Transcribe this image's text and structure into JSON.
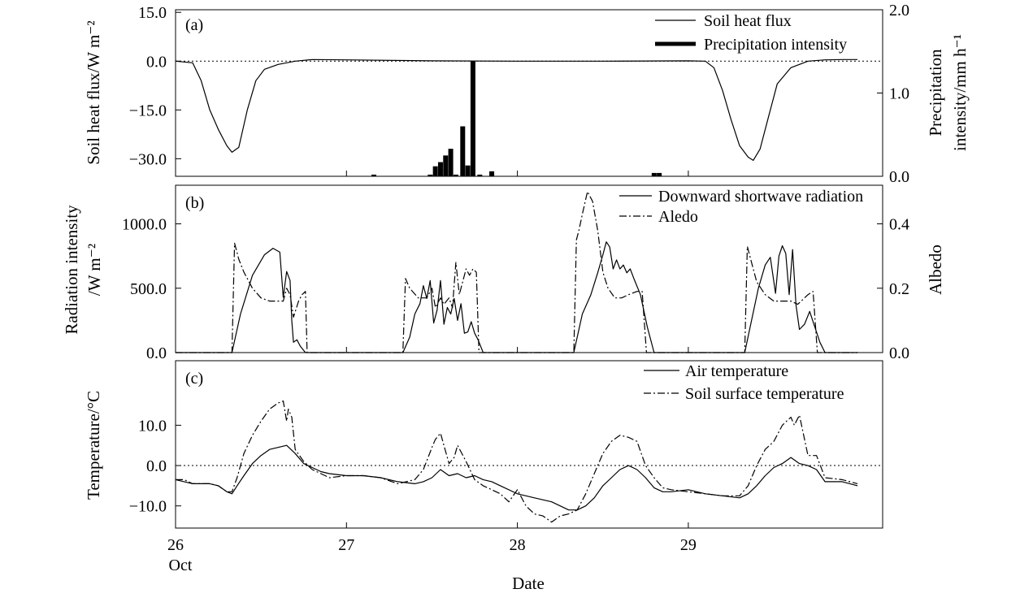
{
  "colors": {
    "line": "#000000",
    "background": "#ffffff"
  },
  "xlabel": "Date",
  "x_extra_label": "Oct",
  "xticks": [
    "26",
    "27",
    "28",
    "29"
  ],
  "chart_data": [
    {
      "type": "line+bar",
      "panel": "(a)",
      "ylabel": "Soil heat flux/W m⁻²",
      "y2label_line1": "Precipitation",
      "y2label_line2": "intensity/mm h⁻¹",
      "ylim": [
        -35.4,
        15.8
      ],
      "y2lim": [
        0,
        2.0
      ],
      "yticks": [
        15.0,
        0.0,
        -15.0,
        -30.0
      ],
      "yticklabels": [
        "15.0",
        "0.0",
        "−15.0",
        "−30.0"
      ],
      "y2ticks": [
        2.0,
        1.0,
        0.0
      ],
      "y2ticklabels": [
        "2.0",
        "1.0",
        "0.0"
      ],
      "reference_line": 0,
      "series": [
        {
          "name": "Soil heat flux",
          "axis": "left",
          "style": "solid",
          "x": [
            26.0,
            26.1,
            26.15,
            26.2,
            26.25,
            26.3,
            26.33,
            26.37,
            26.42,
            26.47,
            26.52,
            26.6,
            26.7,
            26.8,
            27.0,
            27.5,
            28.0,
            28.5,
            29.0,
            29.1,
            29.15,
            29.2,
            29.25,
            29.3,
            29.35,
            29.38,
            29.42,
            29.47,
            29.52,
            29.6,
            29.7,
            29.8,
            29.9,
            29.99
          ],
          "y": [
            0.0,
            -0.5,
            -6.0,
            -15.0,
            -21.0,
            -26.0,
            -28.0,
            -26.5,
            -15.0,
            -6.0,
            -2.5,
            -1.0,
            0.0,
            0.5,
            0.4,
            0.1,
            0.0,
            0.0,
            0.1,
            0.0,
            -2.0,
            -9.0,
            -18.0,
            -26.0,
            -29.5,
            -30.5,
            -27.0,
            -17.0,
            -7.0,
            -2.0,
            0.0,
            0.4,
            0.5,
            0.5
          ]
        },
        {
          "name": "Precipitation intensity",
          "axis": "right",
          "style": "bar",
          "x": [
            27.16,
            27.49,
            27.52,
            27.55,
            27.58,
            27.61,
            27.64,
            27.68,
            27.71,
            27.74,
            27.78,
            27.85,
            28.8,
            28.83
          ],
          "y": [
            0.02,
            0.02,
            0.12,
            0.17,
            0.25,
            0.33,
            0.02,
            0.6,
            0.13,
            1.38,
            0.02,
            0.06,
            0.04,
            0.04
          ]
        }
      ]
    },
    {
      "type": "line",
      "panel": "(b)",
      "ylabel_line1": "Radiation intensity",
      "ylabel_line2": "/W m⁻²",
      "y2label": "Albedo",
      "ylim": [
        0,
        1300
      ],
      "y2lim": [
        0,
        0.52
      ],
      "yticks": [
        1000.0,
        500.0,
        0.0
      ],
      "yticklabels": [
        "1000.0",
        "500.0",
        "0.0"
      ],
      "y2ticks": [
        0.4,
        0.2,
        0.0
      ],
      "y2ticklabels": [
        "0.4",
        "0.2",
        "0.0"
      ],
      "series": [
        {
          "name": "Downward shortwave radiation",
          "axis": "left",
          "style": "solid",
          "x": [
            26.0,
            26.33,
            26.38,
            26.45,
            26.52,
            26.57,
            26.61,
            26.63,
            26.65,
            26.67,
            26.68,
            26.69,
            26.71,
            26.73,
            26.76,
            26.8,
            26.95,
            27.33,
            27.37,
            27.4,
            27.43,
            27.45,
            27.47,
            27.49,
            27.51,
            27.53,
            27.55,
            27.57,
            27.59,
            27.61,
            27.63,
            27.65,
            27.67,
            27.69,
            27.71,
            27.73,
            27.75,
            27.77,
            27.8,
            28.33,
            28.38,
            28.43,
            28.47,
            28.5,
            28.52,
            28.54,
            28.56,
            28.58,
            28.6,
            28.62,
            28.64,
            28.66,
            28.68,
            28.72,
            28.76,
            28.8,
            28.95,
            29.33,
            29.37,
            29.41,
            29.45,
            29.48,
            29.51,
            29.53,
            29.55,
            29.57,
            29.59,
            29.61,
            29.63,
            29.65,
            29.68,
            29.71,
            29.74,
            29.77,
            29.8,
            29.99
          ],
          "y": [
            0,
            0,
            300,
            600,
            760,
            810,
            780,
            430,
            630,
            560,
            250,
            80,
            100,
            50,
            0,
            0,
            0,
            0,
            120,
            300,
            380,
            520,
            420,
            560,
            230,
            330,
            560,
            220,
            350,
            300,
            420,
            250,
            380,
            150,
            160,
            240,
            150,
            100,
            0,
            0,
            300,
            450,
            620,
            760,
            860,
            820,
            650,
            720,
            650,
            680,
            620,
            650,
            580,
            450,
            200,
            0,
            0,
            0,
            250,
            500,
            680,
            740,
            460,
            750,
            830,
            770,
            450,
            800,
            370,
            180,
            220,
            320,
            200,
            80,
            0,
            0
          ]
        },
        {
          "name": "Aledo",
          "axis": "right",
          "style": "dashdot",
          "x": [
            26.0,
            26.33,
            26.345,
            26.37,
            26.4,
            26.45,
            26.5,
            26.55,
            26.6,
            26.63,
            26.65,
            26.67,
            26.69,
            26.72,
            26.74,
            26.76,
            26.77,
            26.95,
            27.33,
            27.345,
            27.37,
            27.42,
            27.47,
            27.5,
            27.52,
            27.55,
            27.57,
            27.6,
            27.62,
            27.64,
            27.66,
            27.68,
            27.7,
            27.72,
            27.74,
            27.76,
            27.775,
            27.95,
            28.33,
            28.345,
            28.36,
            28.38,
            28.41,
            28.44,
            28.47,
            28.5,
            28.53,
            28.57,
            28.61,
            28.65,
            28.7,
            28.73,
            28.755,
            28.95,
            29.33,
            29.345,
            29.37,
            29.4,
            29.45,
            29.5,
            29.55,
            29.6,
            29.64,
            29.68,
            29.7,
            29.73,
            29.755,
            29.99
          ],
          "y": [
            0.0,
            0.0,
            0.34,
            0.29,
            0.25,
            0.2,
            0.17,
            0.16,
            0.16,
            0.16,
            0.2,
            0.18,
            0.11,
            0.16,
            0.18,
            0.19,
            0.0,
            0.0,
            0.0,
            0.23,
            0.2,
            0.17,
            0.17,
            0.2,
            0.14,
            0.17,
            0.15,
            0.17,
            0.14,
            0.28,
            0.18,
            0.22,
            0.26,
            0.24,
            0.26,
            0.25,
            0.0,
            0.0,
            0.0,
            0.35,
            0.38,
            0.43,
            0.5,
            0.47,
            0.38,
            0.25,
            0.2,
            0.17,
            0.17,
            0.18,
            0.19,
            0.19,
            0.0,
            0.0,
            0.0,
            0.33,
            0.28,
            0.22,
            0.18,
            0.16,
            0.16,
            0.16,
            0.15,
            0.17,
            0.18,
            0.19,
            0.0,
            0.0
          ]
        }
      ]
    },
    {
      "type": "line",
      "panel": "(c)",
      "ylabel": "Temperature/°C",
      "ylim": [
        -15.5,
        26.0
      ],
      "yticks": [
        10.0,
        0.0,
        -10.0
      ],
      "yticklabels": [
        "10.0",
        "0.0",
        "−10.0"
      ],
      "reference_line": 0,
      "series": [
        {
          "name": "Air temperature",
          "axis": "left",
          "style": "solid",
          "x": [
            26.0,
            26.05,
            26.1,
            26.15,
            26.2,
            26.25,
            26.3,
            26.33,
            26.36,
            26.4,
            26.45,
            26.5,
            26.55,
            26.6,
            26.65,
            26.7,
            26.75,
            26.8,
            26.85,
            26.9,
            27.0,
            27.1,
            27.2,
            27.3,
            27.4,
            27.45,
            27.5,
            27.55,
            27.6,
            27.65,
            27.7,
            27.75,
            27.8,
            27.85,
            27.9,
            28.0,
            28.1,
            28.2,
            28.25,
            28.3,
            28.35,
            28.4,
            28.45,
            28.5,
            28.55,
            28.6,
            28.65,
            28.7,
            28.75,
            28.8,
            28.85,
            28.9,
            29.0,
            29.1,
            29.2,
            29.3,
            29.35,
            29.4,
            29.45,
            29.5,
            29.55,
            29.6,
            29.65,
            29.7,
            29.75,
            29.8,
            29.9,
            29.99
          ],
          "y": [
            -3.5,
            -4.0,
            -4.5,
            -4.5,
            -4.5,
            -5.0,
            -6.5,
            -7.0,
            -5.0,
            -2.5,
            0.5,
            2.5,
            4.0,
            4.5,
            5.0,
            3.0,
            0.5,
            -0.5,
            -1.5,
            -2.0,
            -2.5,
            -2.5,
            -3.0,
            -4.0,
            -4.5,
            -4.0,
            -3.0,
            -1.0,
            -2.5,
            -2.0,
            -3.0,
            -2.5,
            -3.5,
            -4.0,
            -5.0,
            -7.0,
            -8.0,
            -9.0,
            -10.0,
            -11.0,
            -11.0,
            -10.0,
            -8.0,
            -5.0,
            -3.0,
            -1.0,
            0.0,
            -1.0,
            -3.0,
            -5.5,
            -6.5,
            -6.5,
            -6.0,
            -7.0,
            -7.5,
            -8.0,
            -7.0,
            -5.0,
            -2.5,
            -0.5,
            0.5,
            2.0,
            0.5,
            0.0,
            -1.0,
            -4.0,
            -4.0,
            -5.0
          ]
        },
        {
          "name": "Soil surface temperature",
          "axis": "left",
          "style": "dashdot",
          "x": [
            26.0,
            26.05,
            26.1,
            26.15,
            26.2,
            26.25,
            26.3,
            26.33,
            26.36,
            26.4,
            26.45,
            26.5,
            26.55,
            26.6,
            26.63,
            26.65,
            26.66,
            26.68,
            26.7,
            26.75,
            26.8,
            26.85,
            26.9,
            27.0,
            27.1,
            27.2,
            27.3,
            27.4,
            27.45,
            27.5,
            27.52,
            27.55,
            27.6,
            27.63,
            27.65,
            27.7,
            27.75,
            27.8,
            27.85,
            27.9,
            27.95,
            28.0,
            28.05,
            28.1,
            28.15,
            28.2,
            28.25,
            28.3,
            28.35,
            28.4,
            28.45,
            28.5,
            28.55,
            28.6,
            28.65,
            28.7,
            28.75,
            28.8,
            28.85,
            28.9,
            29.0,
            29.1,
            29.2,
            29.3,
            29.35,
            29.4,
            29.45,
            29.5,
            29.55,
            29.6,
            29.62,
            29.65,
            29.7,
            29.75,
            29.8,
            29.9,
            29.99
          ],
          "y": [
            -3.5,
            -3.5,
            -4.5,
            -4.5,
            -4.5,
            -5.0,
            -6.5,
            -6.5,
            -3.0,
            3.0,
            7.5,
            11.0,
            14.0,
            15.5,
            16.0,
            11.0,
            14.0,
            12.0,
            4.0,
            1.0,
            -1.0,
            -2.0,
            -3.0,
            -2.5,
            -2.5,
            -3.0,
            -4.5,
            -3.5,
            -1.0,
            4.5,
            6.5,
            8.0,
            0.5,
            2.0,
            5.0,
            1.0,
            -3.5,
            -5.0,
            -6.0,
            -7.0,
            -9.0,
            -6.0,
            -10.0,
            -12.0,
            -12.5,
            -14.0,
            -12.5,
            -12.0,
            -11.0,
            -7.0,
            -2.0,
            3.0,
            6.0,
            7.5,
            7.0,
            6.0,
            0.0,
            -3.0,
            -5.5,
            -6.0,
            -6.5,
            -7.0,
            -7.5,
            -7.5,
            -5.0,
            0.0,
            4.0,
            6.0,
            10.0,
            12.0,
            10.0,
            12.5,
            2.5,
            2.5,
            -3.0,
            -3.5,
            -4.5
          ]
        }
      ]
    }
  ]
}
